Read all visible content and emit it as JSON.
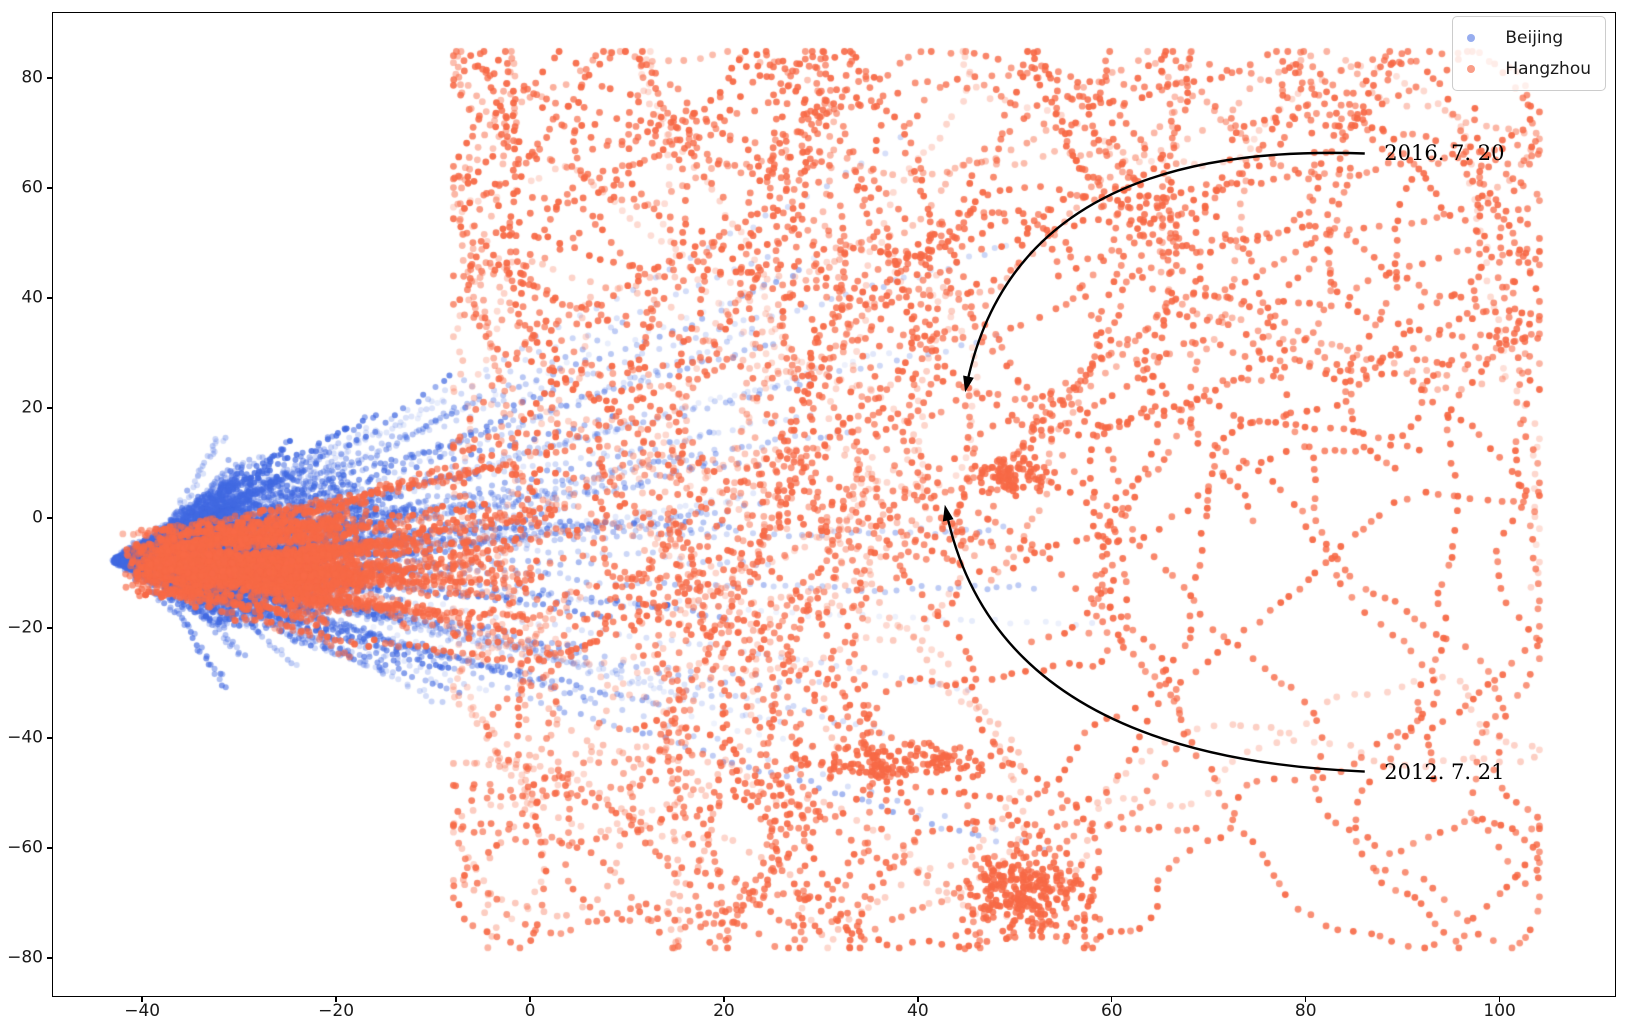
{
  "figure": {
    "background": "#ffffff"
  },
  "chart_data": {
    "type": "scatter",
    "title": "",
    "xlabel": "",
    "ylabel": "",
    "grid": false,
    "xlim": [
      -49.3,
      112.0
    ],
    "ylim": [
      -87.1,
      92.0
    ],
    "x_ticks": [
      -40,
      -20,
      0,
      20,
      40,
      60,
      80,
      100
    ],
    "y_ticks": [
      -80,
      -60,
      -40,
      -20,
      0,
      20,
      40,
      60,
      80
    ],
    "legend": {
      "position": "upper right",
      "entries": [
        {
          "label": "Beijing",
          "color": "#4169E1",
          "marker": "circle"
        },
        {
          "label": "Hangzhou",
          "color": "#F76946",
          "marker": "circle"
        }
      ]
    },
    "series": [
      {
        "name": "Beijing",
        "color": "#4169E1",
        "marker": "circle",
        "marker_radius": 3.0,
        "point_alpha": "varies 0.1 - 0.9 (time-faded trajectories)",
        "distribution": "fan of trajectory traces converging at tip (-42.5,-7.5), dense core -38<x<5 / -25<y<25, sparse arcs reaching x~55 and y from -40 to 60",
        "generator": {
          "seed": 1337,
          "kind": "fan-trails",
          "trails": 270,
          "tip": [
            -42.5,
            -7.5
          ],
          "angle_range": [
            -0.64,
            0.78
          ],
          "end_x_main": [
            -32,
            12
          ],
          "end_x_mid": [
            2,
            30
          ],
          "end_x_long": [
            18,
            58
          ],
          "alpha_range": [
            0.16,
            0.8
          ]
        }
      },
      {
        "name": "Hangzhou",
        "color": "#F76946",
        "marker": "circle",
        "marker_radius": 3.4,
        "point_alpha": "varies 0.2 - 0.95 (time-faded trajectories)",
        "distribution": "clumpy streaks overlapping Beijing core (-42<x<10) plus long wandering trajectories spanning 0<x<105, -78<y<85, dense blobs near (51,-68), (38,-44), (49,8)",
        "generator": {
          "seed": 20127,
          "kind": "trajectories",
          "core": {
            "trails": 95,
            "start_x": [
              -42,
              -35
            ],
            "start_y_mean": -8,
            "start_y_sd": 5.5,
            "end_x": [
              -22,
              10
            ]
          },
          "wander": {
            "trails": 58,
            "start_x": [
              -5,
              60
            ],
            "start_y": [
              -25,
              55
            ],
            "bounds_x": [
              -8,
              104
            ],
            "bounds_y": [
              -78,
              85
            ]
          },
          "clusters": [
            {
              "x": 51,
              "y": -68,
              "sx": 4.5,
              "sy": 5.0,
              "n": 240
            },
            {
              "x": 38,
              "y": -44,
              "sx": 7.0,
              "sy": 2.2,
              "n": 130
            },
            {
              "x": 49,
              "y": 8,
              "sx": 3.0,
              "sy": 2.5,
              "n": 80
            }
          ],
          "alpha_strong": [
            0.78,
            0.95
          ],
          "alpha_faded": [
            0.25,
            0.55
          ]
        }
      }
    ],
    "annotations": [
      {
        "text": "2016. 7. 20",
        "text_xy": [
          88.1,
          66.4
        ],
        "tail_xy": [
          86.2,
          66.4
        ],
        "control_xy": [
          50.5,
          68.7
        ],
        "target_xy": [
          44.9,
          22.9
        ],
        "arrow_color": "#000000"
      },
      {
        "text": "2012. 7. 21",
        "text_xy": [
          88.1,
          -46.2
        ],
        "tail_xy": [
          86.2,
          -46.2
        ],
        "control_xy": [
          48.5,
          -43.5
        ],
        "target_xy": [
          42.8,
          2.4
        ],
        "arrow_color": "#000000"
      }
    ]
  }
}
